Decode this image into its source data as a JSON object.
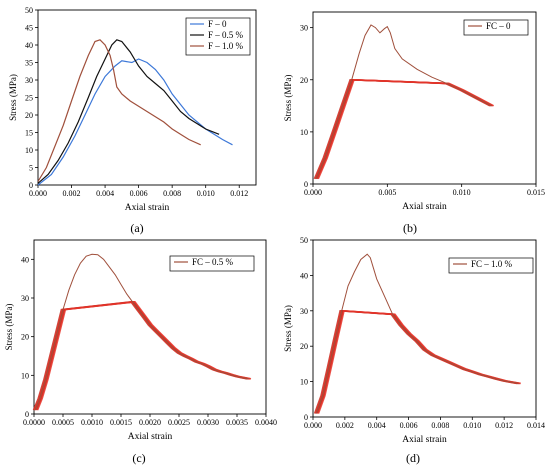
{
  "chart_data": [
    {
      "id": "a",
      "type": "line",
      "panel_label": "(a)",
      "xlabel": "Axial strain",
      "ylabel": "Stress (MPa)",
      "xlim": [
        0,
        0.013
      ],
      "ylim": [
        0,
        50
      ],
      "xticks": [
        0.0,
        0.002,
        0.004,
        0.006,
        0.008,
        0.01,
        0.012
      ],
      "xtick_labels": [
        "0.000",
        "0.002",
        "0.004",
        "0.006",
        "0.008",
        "0.010",
        "0.012"
      ],
      "yticks": [
        0,
        5,
        10,
        15,
        20,
        25,
        30,
        35,
        40,
        45,
        50
      ],
      "ytick_labels": [
        "0",
        "5",
        "10",
        "15",
        "20",
        "25",
        "30",
        "35",
        "40",
        "45",
        "50"
      ],
      "legend_position": "top-right",
      "series": [
        {
          "name": "F – 0",
          "color": "#3d78d8",
          "points": [
            [
              0,
              0
            ],
            [
              0.0008,
              3
            ],
            [
              0.0015,
              8
            ],
            [
              0.0022,
              14
            ],
            [
              0.0028,
              20
            ],
            [
              0.0034,
              26
            ],
            [
              0.004,
              31
            ],
            [
              0.0046,
              34
            ],
            [
              0.005,
              35.5
            ],
            [
              0.0056,
              35
            ],
            [
              0.006,
              36
            ],
            [
              0.0065,
              35
            ],
            [
              0.007,
              33
            ],
            [
              0.0075,
              30
            ],
            [
              0.008,
              26
            ],
            [
              0.009,
              20
            ],
            [
              0.01,
              16
            ],
            [
              0.011,
              13
            ],
            [
              0.0116,
              11.5
            ]
          ]
        },
        {
          "name": "F – 0.5 %",
          "color": "#111111",
          "points": [
            [
              0,
              0.5
            ],
            [
              0.0006,
              3
            ],
            [
              0.0012,
              7
            ],
            [
              0.0018,
              12
            ],
            [
              0.0024,
              18
            ],
            [
              0.003,
              25
            ],
            [
              0.0035,
              31
            ],
            [
              0.004,
              36
            ],
            [
              0.0044,
              40
            ],
            [
              0.0047,
              41.5
            ],
            [
              0.005,
              41
            ],
            [
              0.0055,
              38
            ],
            [
              0.006,
              34
            ],
            [
              0.0065,
              31
            ],
            [
              0.007,
              29
            ],
            [
              0.0075,
              27
            ],
            [
              0.008,
              24
            ],
            [
              0.0085,
              21
            ],
            [
              0.009,
              19
            ],
            [
              0.0095,
              17.5
            ],
            [
              0.01,
              16
            ],
            [
              0.0108,
              14.5
            ]
          ]
        },
        {
          "name": "F – 1.0 %",
          "color": "#a0503c",
          "points": [
            [
              0,
              1
            ],
            [
              0.0005,
              5
            ],
            [
              0.001,
              11
            ],
            [
              0.0015,
              17
            ],
            [
              0.002,
              24
            ],
            [
              0.0025,
              31
            ],
            [
              0.003,
              37
            ],
            [
              0.0034,
              41
            ],
            [
              0.0037,
              41.5
            ],
            [
              0.004,
              40
            ],
            [
              0.0043,
              37
            ],
            [
              0.0045,
              33
            ],
            [
              0.0047,
              28
            ],
            [
              0.005,
              26
            ],
            [
              0.0055,
              24
            ],
            [
              0.006,
              22.5
            ],
            [
              0.0065,
              21
            ],
            [
              0.007,
              19.5
            ],
            [
              0.0075,
              18
            ],
            [
              0.008,
              16
            ],
            [
              0.0085,
              14.5
            ],
            [
              0.009,
              13
            ],
            [
              0.0097,
              11.5
            ]
          ]
        }
      ]
    },
    {
      "id": "b",
      "type": "line",
      "panel_label": "(b)",
      "xlabel": "Axial strain",
      "ylabel": "Stress (MPa)",
      "xlim": [
        0,
        0.015
      ],
      "ylim": [
        0,
        33
      ],
      "xticks": [
        0.0,
        0.005,
        0.01,
        0.015
      ],
      "xtick_labels": [
        "0.000",
        "0.005",
        "0.010",
        "0.015"
      ],
      "yticks": [
        0,
        10,
        20,
        30
      ],
      "ytick_labels": [
        "0",
        "10",
        "20",
        "30"
      ],
      "legend_position": "top-right",
      "series": [
        {
          "name": "FC – 0",
          "color": "#a0503c",
          "points": [
            [
              0.0002,
              1
            ],
            [
              0.0008,
              5
            ],
            [
              0.0014,
              10
            ],
            [
              0.002,
              15
            ],
            [
              0.0026,
              20
            ],
            [
              0.0031,
              25
            ],
            [
              0.0035,
              28.5
            ],
            [
              0.0039,
              30.5
            ],
            [
              0.0042,
              30
            ],
            [
              0.0045,
              29
            ],
            [
              0.0048,
              29.8
            ],
            [
              0.005,
              30.2
            ],
            [
              0.0052,
              29
            ],
            [
              0.0055,
              26
            ],
            [
              0.006,
              24
            ],
            [
              0.007,
              22
            ],
            [
              0.008,
              20.5
            ],
            [
              0.009,
              19.3
            ],
            [
              0.01,
              18
            ],
            [
              0.011,
              16.5
            ],
            [
              0.012,
              15
            ]
          ]
        }
      ]
    },
    {
      "id": "c",
      "type": "line",
      "panel_label": "(c)",
      "xlabel": "Axial strain",
      "ylabel": "Stress (MPa)",
      "xlim": [
        0,
        0.004
      ],
      "ylim": [
        0,
        45
      ],
      "xticks": [
        0.0,
        0.0005,
        0.001,
        0.0015,
        0.002,
        0.0025,
        0.003,
        0.0035,
        0.004
      ],
      "xtick_labels": [
        "0.0000",
        "0.0005",
        "0.0010",
        "0.0015",
        "0.0020",
        "0.0025",
        "0.0030",
        "0.0035",
        "0.0040"
      ],
      "yticks": [
        0,
        10,
        20,
        30,
        40
      ],
      "ytick_labels": [
        "0",
        "10",
        "20",
        "30",
        "40"
      ],
      "legend_position": "top-right",
      "series": [
        {
          "name": "FC – 0.5 %",
          "color": "#a0503c",
          "points": [
            [
              2e-05,
              1
            ],
            [
              0.0001,
              4
            ],
            [
              0.0002,
              9
            ],
            [
              0.0003,
              15
            ],
            [
              0.0004,
              21
            ],
            [
              0.0005,
              27
            ],
            [
              0.0006,
              32
            ],
            [
              0.0007,
              36
            ],
            [
              0.0008,
              39
            ],
            [
              0.0009,
              40.8
            ],
            [
              0.001,
              41.3
            ],
            [
              0.0011,
              41.2
            ],
            [
              0.0012,
              40
            ],
            [
              0.0013,
              38
            ],
            [
              0.0014,
              36
            ],
            [
              0.0015,
              33.5
            ],
            [
              0.0016,
              31
            ],
            [
              0.0017,
              29
            ],
            [
              0.0018,
              27
            ],
            [
              0.0019,
              25
            ],
            [
              0.002,
              23
            ],
            [
              0.0021,
              21.5
            ],
            [
              0.0022,
              20
            ],
            [
              0.0023,
              18.5
            ],
            [
              0.0024,
              17
            ],
            [
              0.0025,
              15.8
            ],
            [
              0.0026,
              15
            ],
            [
              0.0027,
              14.3
            ],
            [
              0.0028,
              13.5
            ],
            [
              0.0029,
              13
            ],
            [
              0.003,
              12.3
            ],
            [
              0.0031,
              11.5
            ],
            [
              0.0032,
              11
            ],
            [
              0.0033,
              10.6
            ],
            [
              0.0034,
              10.1
            ],
            [
              0.0035,
              9.7
            ],
            [
              0.0036,
              9.4
            ],
            [
              0.0037,
              9.1
            ]
          ]
        }
      ]
    },
    {
      "id": "d",
      "type": "line",
      "panel_label": "(d)",
      "xlabel": "Axial strain",
      "ylabel": "Stress (MPa)",
      "xlim": [
        0,
        0.014
      ],
      "ylim": [
        0,
        50
      ],
      "xticks": [
        0.0,
        0.002,
        0.004,
        0.006,
        0.008,
        0.01,
        0.012,
        0.014
      ],
      "xtick_labels": [
        "0.000",
        "0.002",
        "0.004",
        "0.006",
        "0.008",
        "0.010",
        "0.012",
        "0.014"
      ],
      "yticks": [
        0,
        10,
        20,
        30,
        40,
        50
      ],
      "ytick_labels": [
        "0",
        "10",
        "20",
        "30",
        "40",
        "50"
      ],
      "legend_position": "top-right",
      "series": [
        {
          "name": "FC – 1.0 %",
          "color": "#a0503c",
          "points": [
            [
              0.0002,
              1
            ],
            [
              0.0006,
              6
            ],
            [
              0.001,
              14
            ],
            [
              0.0014,
              22
            ],
            [
              0.0018,
              30
            ],
            [
              0.0022,
              37
            ],
            [
              0.0026,
              41
            ],
            [
              0.003,
              44.5
            ],
            [
              0.0034,
              46
            ],
            [
              0.0036,
              45
            ],
            [
              0.0038,
              42
            ],
            [
              0.004,
              39
            ],
            [
              0.0043,
              36
            ],
            [
              0.0046,
              33
            ],
            [
              0.005,
              29
            ],
            [
              0.0055,
              26
            ],
            [
              0.006,
              23.5
            ],
            [
              0.0065,
              21.5
            ],
            [
              0.007,
              19
            ],
            [
              0.0075,
              17.5
            ],
            [
              0.008,
              16.5
            ],
            [
              0.0085,
              15.5
            ],
            [
              0.009,
              14.5
            ],
            [
              0.0095,
              13.5
            ],
            [
              0.01,
              12.8
            ],
            [
              0.0105,
              12
            ],
            [
              0.011,
              11.4
            ],
            [
              0.0115,
              10.8
            ],
            [
              0.012,
              10.2
            ],
            [
              0.0125,
              9.8
            ],
            [
              0.0129,
              9.5
            ]
          ]
        }
      ]
    }
  ]
}
